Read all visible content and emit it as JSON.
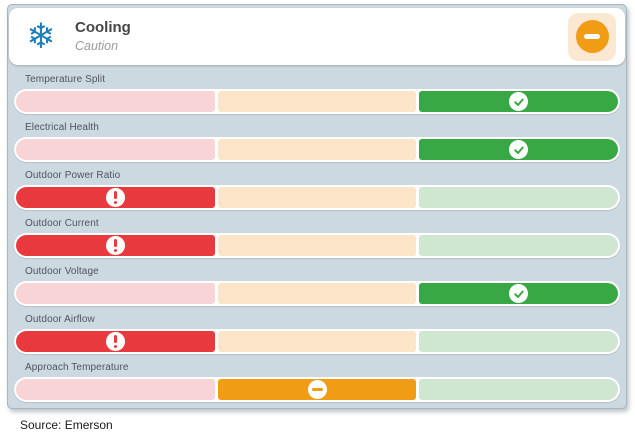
{
  "header": {
    "title": "Cooling",
    "subtitle": "Caution",
    "system_icon": "snowflake-icon",
    "status_icon": "minus-circle-icon",
    "status": "caution"
  },
  "colors": {
    "panel-bg": "#cdd9e0",
    "blue": "#1d80ba",
    "red": "#e8393f",
    "orange": "#f09c15",
    "green": "#38a845",
    "pale-pink": "#f8d4d6",
    "pale-orange": "#fce5c9",
    "pale-green": "#cfe7d0",
    "peach": "#fbe8d2"
  },
  "statuses": {
    "alert": {
      "segment_index": 0,
      "icon": "exclamation-icon"
    },
    "caution": {
      "segment_index": 1,
      "icon": "minus-icon"
    },
    "good": {
      "segment_index": 2,
      "icon": "check-icon"
    }
  },
  "metrics": [
    {
      "label": "Temperature Split",
      "status": "good"
    },
    {
      "label": "Electrical Health",
      "status": "good"
    },
    {
      "label": "Outdoor Power Ratio",
      "status": "alert"
    },
    {
      "label": "Outdoor Current",
      "status": "alert"
    },
    {
      "label": "Outdoor Voltage",
      "status": "good"
    },
    {
      "label": "Outdoor Airflow",
      "status": "alert"
    },
    {
      "label": "Approach Temperature",
      "status": "caution"
    }
  ],
  "snowflake_glyph": "❄",
  "footer": {
    "source": "Source: Emerson"
  }
}
